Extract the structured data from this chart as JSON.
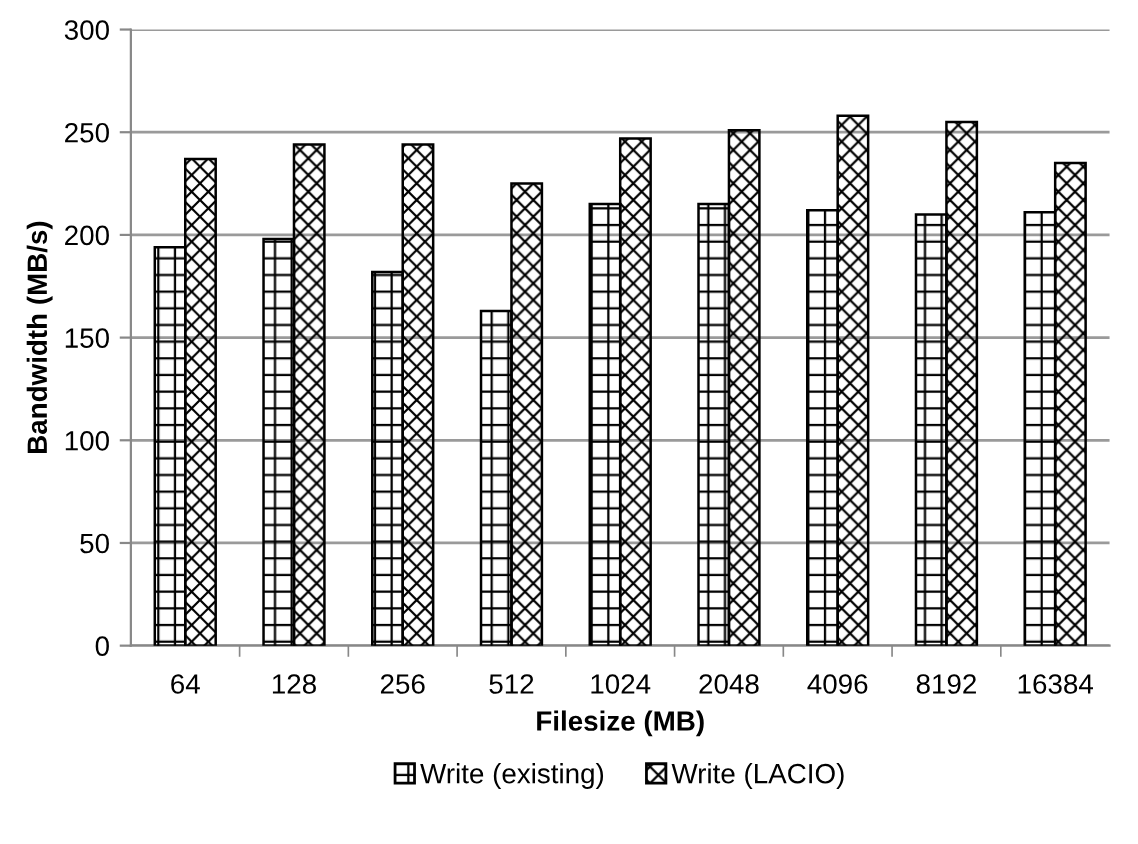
{
  "chart_data": {
    "type": "bar",
    "xlabel": "Filesize (MB)",
    "ylabel": "Bandwidth (MB/s)",
    "categories": [
      "64",
      "128",
      "256",
      "512",
      "1024",
      "2048",
      "4096",
      "8192",
      "16384"
    ],
    "series": [
      {
        "name": "Write (existing)",
        "color": "#000000",
        "values": [
          194,
          198,
          182,
          163,
          215,
          215,
          212,
          210,
          211
        ]
      },
      {
        "name": "Write (LACIO)",
        "color": "#000000",
        "values": [
          237,
          244,
          244,
          225,
          247,
          251,
          258,
          255,
          235
        ]
      }
    ],
    "ylim": [
      0,
      300
    ],
    "yticks": [
      0,
      50,
      100,
      150,
      200,
      250,
      300
    ],
    "grid": "y",
    "legend": "bottom"
  }
}
